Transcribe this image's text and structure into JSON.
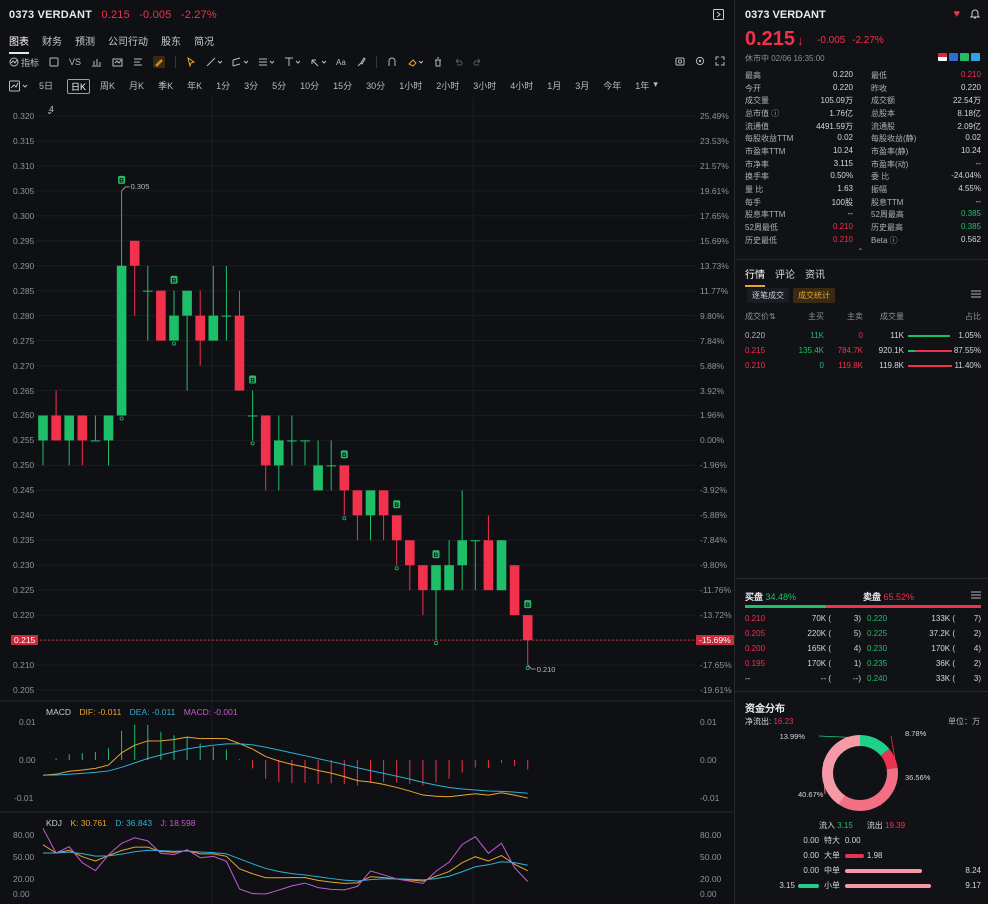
{
  "header": {
    "ticker": "0373 VERDANT",
    "price": "0.215",
    "change": "-0.005",
    "change_pct": "-2.27%"
  },
  "nav_tabs": [
    "图表",
    "财务",
    "预测",
    "公司行动",
    "股东",
    "简况"
  ],
  "toolbar": {
    "indicator_label": "指标",
    "vs_label": "VS"
  },
  "timeframes": [
    "5日",
    "日K",
    "周K",
    "月K",
    "季K",
    "年K",
    "1分",
    "3分",
    "5分",
    "10分",
    "15分",
    "30分",
    "1小时",
    "2小时",
    "3小时",
    "4小时",
    "1月",
    "3月",
    "今年",
    "1年"
  ],
  "selected_timeframe": "日K",
  "chart_controls": {
    "ma_count": "4"
  },
  "chart_data": {
    "type": "candlestick",
    "price_axis": [
      "0.320",
      "0.315",
      "0.310",
      "0.305",
      "0.300",
      "0.295",
      "0.290",
      "0.285",
      "0.280",
      "0.275",
      "0.270",
      "0.265",
      "0.260",
      "0.255",
      "0.250",
      "0.245",
      "0.240",
      "0.235",
      "0.230",
      "0.225",
      "0.220",
      "0.215",
      "0.210",
      "0.205"
    ],
    "pct_axis": [
      "25.49%",
      "23.53%",
      "21.57%",
      "19.61%",
      "17.65%",
      "15.69%",
      "13.73%",
      "11.77%",
      "9.80%",
      "7.84%",
      "5.88%",
      "3.92%",
      "1.96%",
      "0.00%",
      "-1.96%",
      "-3.92%",
      "-5.88%",
      "-7.84%",
      "-9.80%",
      "-11.76%",
      "-13.72%",
      "-15.69%",
      "-17.65%",
      "-19.61%"
    ],
    "ylim": [
      0.205,
      0.32
    ],
    "current_price": "0.215",
    "current_pct": "-15.69%",
    "high_label": "0.305",
    "low_label": "0.210",
    "candles": [
      {
        "o": 0.255,
        "h": 0.26,
        "l": 0.25,
        "c": 0.26
      },
      {
        "o": 0.26,
        "h": 0.265,
        "l": 0.255,
        "c": 0.255
      },
      {
        "o": 0.255,
        "h": 0.26,
        "l": 0.25,
        "c": 0.26
      },
      {
        "o": 0.26,
        "h": 0.26,
        "l": 0.25,
        "c": 0.255
      },
      {
        "o": 0.255,
        "h": 0.26,
        "l": 0.255,
        "c": 0.255
      },
      {
        "o": 0.255,
        "h": 0.26,
        "l": 0.25,
        "c": 0.26
      },
      {
        "o": 0.26,
        "h": 0.305,
        "l": 0.26,
        "c": 0.29
      },
      {
        "o": 0.295,
        "h": 0.295,
        "l": 0.28,
        "c": 0.29
      },
      {
        "o": 0.285,
        "h": 0.29,
        "l": 0.275,
        "c": 0.285
      },
      {
        "o": 0.285,
        "h": 0.285,
        "l": 0.275,
        "c": 0.275
      },
      {
        "o": 0.275,
        "h": 0.285,
        "l": 0.275,
        "c": 0.28
      },
      {
        "o": 0.28,
        "h": 0.285,
        "l": 0.265,
        "c": 0.285
      },
      {
        "o": 0.28,
        "h": 0.285,
        "l": 0.27,
        "c": 0.275
      },
      {
        "o": 0.275,
        "h": 0.29,
        "l": 0.275,
        "c": 0.28
      },
      {
        "o": 0.28,
        "h": 0.29,
        "l": 0.275,
        "c": 0.28
      },
      {
        "o": 0.28,
        "h": 0.285,
        "l": 0.265,
        "c": 0.265
      },
      {
        "o": 0.26,
        "h": 0.265,
        "l": 0.255,
        "c": 0.26
      },
      {
        "o": 0.26,
        "h": 0.26,
        "l": 0.245,
        "c": 0.25
      },
      {
        "o": 0.25,
        "h": 0.26,
        "l": 0.245,
        "c": 0.255
      },
      {
        "o": 0.255,
        "h": 0.26,
        "l": 0.25,
        "c": 0.255
      },
      {
        "o": 0.255,
        "h": 0.255,
        "l": 0.25,
        "c": 0.255
      },
      {
        "o": 0.245,
        "h": 0.255,
        "l": 0.245,
        "c": 0.25
      },
      {
        "o": 0.25,
        "h": 0.255,
        "l": 0.245,
        "c": 0.25
      },
      {
        "o": 0.25,
        "h": 0.25,
        "l": 0.24,
        "c": 0.245
      },
      {
        "o": 0.245,
        "h": 0.245,
        "l": 0.235,
        "c": 0.24
      },
      {
        "o": 0.24,
        "h": 0.245,
        "l": 0.235,
        "c": 0.245
      },
      {
        "o": 0.245,
        "h": 0.245,
        "l": 0.235,
        "c": 0.24
      },
      {
        "o": 0.24,
        "h": 0.24,
        "l": 0.23,
        "c": 0.235
      },
      {
        "o": 0.235,
        "h": 0.235,
        "l": 0.225,
        "c": 0.23
      },
      {
        "o": 0.23,
        "h": 0.23,
        "l": 0.22,
        "c": 0.225
      },
      {
        "o": 0.225,
        "h": 0.23,
        "l": 0.215,
        "c": 0.23
      },
      {
        "o": 0.225,
        "h": 0.235,
        "l": 0.225,
        "c": 0.23
      },
      {
        "o": 0.23,
        "h": 0.245,
        "l": 0.225,
        "c": 0.235
      },
      {
        "o": 0.235,
        "h": 0.235,
        "l": 0.225,
        "c": 0.235
      },
      {
        "o": 0.235,
        "h": 0.24,
        "l": 0.225,
        "c": 0.225
      },
      {
        "o": 0.225,
        "h": 0.235,
        "l": 0.225,
        "c": 0.235
      },
      {
        "o": 0.23,
        "h": 0.23,
        "l": 0.22,
        "c": 0.22
      },
      {
        "o": 0.22,
        "h": 0.22,
        "l": 0.21,
        "c": 0.215
      }
    ],
    "buy_markers": [
      6,
      10,
      16,
      23,
      27,
      30,
      37
    ],
    "macd": {
      "label": "MACD",
      "dif_label": "DIF: -0.011",
      "dea_label": "DEA: -0.011",
      "macd_label": "MACD: -0.001",
      "axis": [
        "0.01",
        "0.00",
        "-0.01"
      ]
    },
    "kdj": {
      "label": "KDJ",
      "k_label": "K: 30.761",
      "d_label": "D: 36.843",
      "j_label": "J: 18.598",
      "axis": [
        "80.00",
        "50.00",
        "20.00",
        "0.00"
      ]
    }
  },
  "side": {
    "ticker": "0373 VERDANT",
    "price": "0.215",
    "arrow": "↓",
    "change": "-0.005",
    "change_pct": "-2.27%",
    "status": "休市中 02/06 16:35:00",
    "stats": [
      [
        {
          "l": "最高",
          "v": "0.220"
        },
        {
          "l": "最低",
          "v": "0.210",
          "red": true
        }
      ],
      [
        {
          "l": "今开",
          "v": "0.220"
        },
        {
          "l": "昨收",
          "v": "0.220"
        }
      ],
      [
        {
          "l": "成交量",
          "v": "105.09万"
        },
        {
          "l": "成交额",
          "v": "22.54万"
        }
      ],
      [
        {
          "l": "总市值 ⓘ",
          "v": "1.76亿"
        },
        {
          "l": "总股本",
          "v": "8.18亿"
        }
      ],
      [
        {
          "l": "流通值",
          "v": "4491.59万"
        },
        {
          "l": "流通股",
          "v": "2.09亿"
        }
      ],
      [
        {
          "l": "每股收益TTM",
          "v": "0.02"
        },
        {
          "l": "每股收益(静)",
          "v": "0.02"
        }
      ],
      [
        {
          "l": "市盈率TTM",
          "v": "10.24"
        },
        {
          "l": "市盈率(静)",
          "v": "10.24"
        }
      ],
      [
        {
          "l": "市净率",
          "v": "3.115"
        },
        {
          "l": "市盈率(动)",
          "v": "--"
        }
      ],
      [
        {
          "l": "换手率",
          "v": "0.50%"
        },
        {
          "l": "委 比",
          "v": "-24.04%"
        }
      ],
      [
        {
          "l": "量 比",
          "v": "1.63"
        },
        {
          "l": "振幅",
          "v": "4.55%"
        }
      ],
      [
        {
          "l": "每手",
          "v": "100股"
        },
        {
          "l": "股息TTM",
          "v": "--"
        }
      ],
      [
        {
          "l": "股息率TTM",
          "v": "--"
        },
        {
          "l": "52周最高",
          "v": "0.385",
          "green": true
        }
      ],
      [
        {
          "l": "52周最低",
          "v": "0.210",
          "red": true
        },
        {
          "l": "历史最高",
          "v": "0.385",
          "green": true
        }
      ],
      [
        {
          "l": "历史最低",
          "v": "0.210",
          "red": true
        },
        {
          "l": "Beta ⓘ",
          "v": "0.562"
        }
      ]
    ],
    "tabs": [
      "行情",
      "评论",
      "资讯"
    ],
    "subtabs": [
      "逐笔成交",
      "成交统计"
    ],
    "trade_headers": [
      "成交价⇅",
      "主买",
      "主卖",
      "成交量",
      "占比"
    ],
    "trades": [
      {
        "price": "0.220",
        "buy": "11K",
        "sell": "0",
        "vol": "11K",
        "pct": "1.05%",
        "pcolor": "muted",
        "bfrac": 1.0,
        "fill": 0.95
      },
      {
        "price": "0.215",
        "buy": "135.4K",
        "sell": "784.7K",
        "vol": "920.1K",
        "pct": "87.55%",
        "pcolor": "red",
        "bfrac": 0.15,
        "fill": 1.0
      },
      {
        "price": "0.210",
        "buy": "0",
        "sell": "119.8K",
        "vol": "119.8K",
        "pct": "11.40%",
        "pcolor": "red",
        "bfrac": 0.0,
        "fill": 1.0
      }
    ],
    "orderbook": {
      "buy_label": "买盘",
      "buy_pct": "34.48%",
      "sell_label": "卖盘",
      "sell_pct": "65.52%",
      "buy_frac": 0.3448,
      "rows": [
        {
          "bp": "0.210",
          "bv": "70K (",
          "bn": "3)",
          "sp": "0.220",
          "sv": "133K (",
          "sn": "7)"
        },
        {
          "bp": "0.205",
          "bv": "220K (",
          "bn": "5)",
          "sp": "0.225",
          "sv": "37.2K (",
          "sn": "2)"
        },
        {
          "bp": "0.200",
          "bv": "165K (",
          "bn": "4)",
          "sp": "0.230",
          "sv": "170K (",
          "sn": "4)"
        },
        {
          "bp": "0.195",
          "bv": "170K (",
          "bn": "1)",
          "sp": "0.235",
          "sv": "36K (",
          "sn": "2)"
        },
        {
          "bp": "--",
          "bv": "-- (",
          "bn": "--)",
          "sp": "0.240",
          "sv": "33K (",
          "sn": "3)"
        }
      ]
    },
    "capital": {
      "title": "资金分布",
      "net_label": "净流出:",
      "net_value": "16.23",
      "unit": "单位：万",
      "donut": [
        {
          "label": "13.99%",
          "value": 13.99,
          "color": "#1fd08a"
        },
        {
          "label": "8.78%",
          "value": 8.78,
          "color": "#e8344e"
        },
        {
          "label": "36.56%",
          "value": 36.56,
          "color": "#f36f83"
        },
        {
          "label": "40.67%",
          "value": 40.67,
          "color": "#f59aa6"
        }
      ],
      "inflow_label": "流入",
      "inflow": "3.15",
      "outflow_label": "流出",
      "outflow": "19.39",
      "dist": [
        {
          "in": "0.00",
          "name": "特大",
          "out": "0.00",
          "infrac": 0,
          "outfrac": 0
        },
        {
          "in": "0.00",
          "name": "大单",
          "out": "1.98",
          "infrac": 0,
          "outfrac": 0.22
        },
        {
          "in": "0.00",
          "name": "中单",
          "out": "8.24",
          "infrac": 0,
          "outfrac": 0.9
        },
        {
          "in": "3.15",
          "name": "小单",
          "out": "9.17",
          "infrac": 0.34,
          "outfrac": 1.0
        }
      ]
    }
  }
}
